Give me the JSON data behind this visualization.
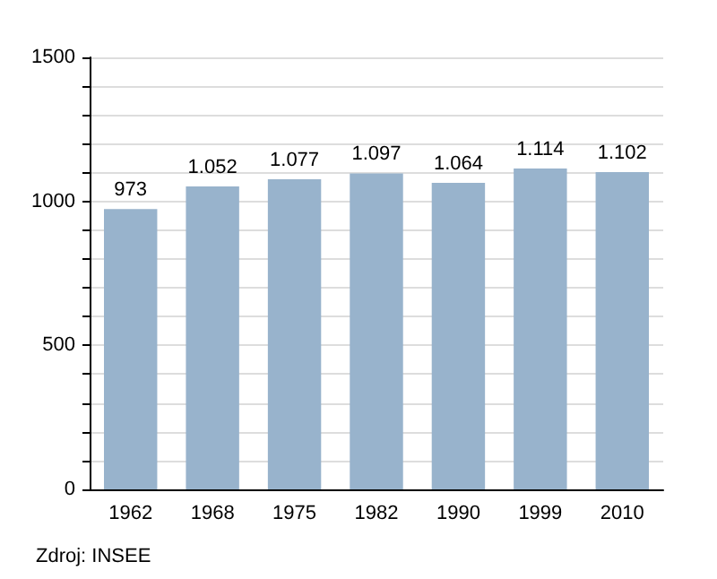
{
  "chart_data": {
    "type": "bar",
    "categories": [
      "1962",
      "1968",
      "1975",
      "1982",
      "1990",
      "1999",
      "2010"
    ],
    "values": [
      973,
      1052,
      1077,
      1097,
      1064,
      1114,
      1102
    ],
    "value_labels": [
      "973",
      "1.052",
      "1.077",
      "1.097",
      "1.064",
      "1.114",
      "1.102"
    ],
    "color": "#98b3cc",
    "ylim": [
      0,
      1500
    ],
    "yticks": [
      0,
      {
        "value": 100,
        "label": null
      },
      {
        "value": 200,
        "label": null
      },
      {
        "value": 300,
        "label": null
      },
      {
        "value": 400,
        "label": null
      },
      500,
      {
        "value": 600,
        "label": null
      },
      {
        "value": 700,
        "label": null
      },
      {
        "value": 800,
        "label": null
      },
      {
        "value": 900,
        "label": null
      },
      1000,
      {
        "value": 1100,
        "label": null
      },
      {
        "value": 1200,
        "label": null
      },
      {
        "value": 1300,
        "label": null
      },
      {
        "value": 1400,
        "label": null
      },
      1500
    ],
    "grid": true,
    "annotations": [
      "Zdroj: INSEE"
    ]
  }
}
